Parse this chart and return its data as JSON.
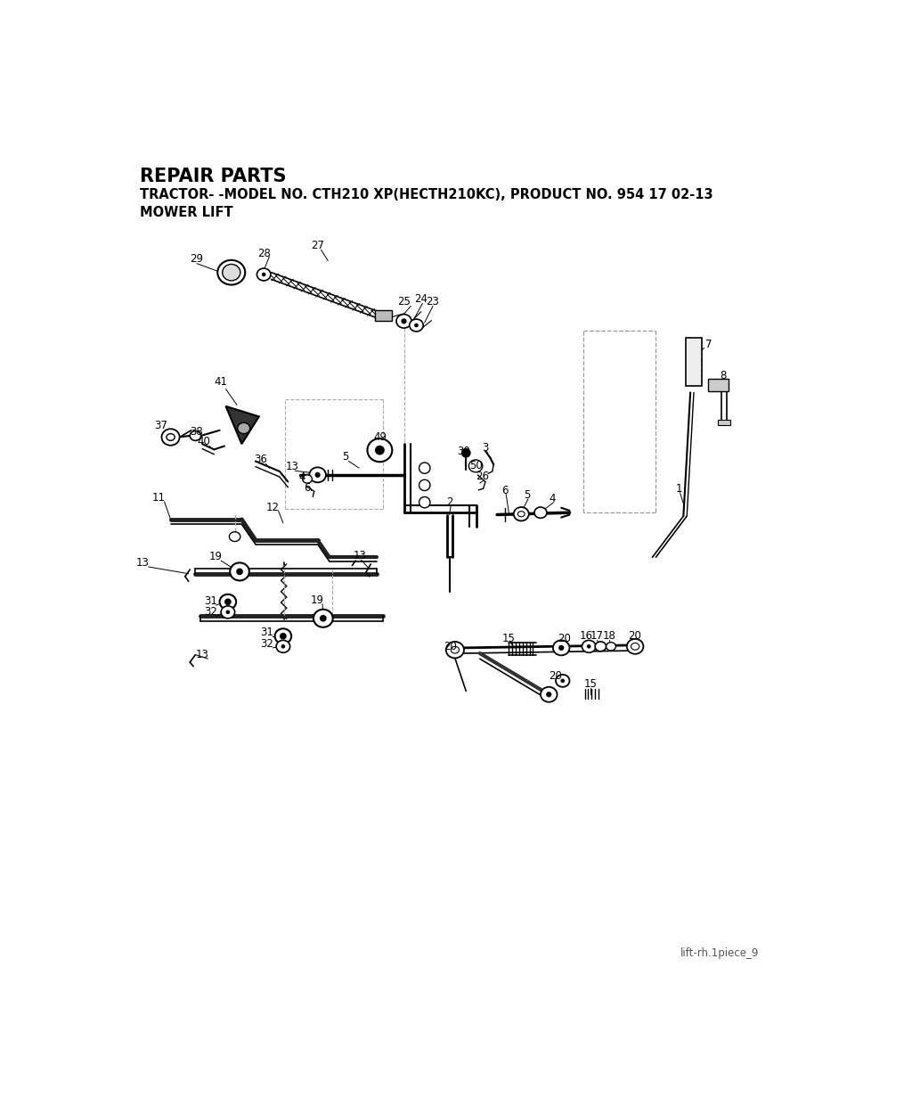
{
  "title": "REPAIR PARTS",
  "subtitle": "TRACTOR- -MODEL NO. CTH210 XP(HECTH210KC), PRODUCT NO. 954 17 02-13",
  "subtitle2": "MOWER LIFT",
  "footer": "lift-rh.1piece_9",
  "bg_color": "#ffffff",
  "title_fontsize": 15,
  "subtitle_fontsize": 10.5,
  "subtitle2_fontsize": 10.5,
  "footer_fontsize": 8.5,
  "labels": [
    [
      "29",
      120,
      185
    ],
    [
      "28",
      218,
      177
    ],
    [
      "27",
      295,
      166
    ],
    [
      "25",
      420,
      248
    ],
    [
      "24",
      445,
      244
    ],
    [
      "23",
      462,
      248
    ],
    [
      "41",
      155,
      365
    ],
    [
      "37",
      68,
      428
    ],
    [
      "38",
      120,
      437
    ],
    [
      "40",
      130,
      452
    ],
    [
      "36",
      213,
      478
    ],
    [
      "13",
      258,
      488
    ],
    [
      "4",
      272,
      503
    ],
    [
      "6",
      280,
      519
    ],
    [
      "5",
      335,
      474
    ],
    [
      "49",
      385,
      445
    ],
    [
      "30",
      506,
      466
    ],
    [
      "3",
      538,
      461
    ],
    [
      "50",
      524,
      486
    ],
    [
      "26",
      534,
      502
    ],
    [
      "6",
      566,
      523
    ],
    [
      "5",
      598,
      530
    ],
    [
      "4",
      635,
      535
    ],
    [
      "2",
      486,
      540
    ],
    [
      "11",
      65,
      533
    ],
    [
      "12",
      230,
      547
    ],
    [
      "13",
      42,
      628
    ],
    [
      "19",
      147,
      619
    ],
    [
      "31",
      140,
      684
    ],
    [
      "32",
      140,
      700
    ],
    [
      "13",
      356,
      618
    ],
    [
      "19",
      295,
      683
    ],
    [
      "31",
      222,
      730
    ],
    [
      "32",
      222,
      746
    ],
    [
      "13",
      128,
      762
    ],
    [
      "7",
      862,
      310
    ],
    [
      "8",
      882,
      356
    ],
    [
      "1",
      818,
      520
    ],
    [
      "20",
      487,
      750
    ],
    [
      "15",
      572,
      738
    ],
    [
      "20",
      652,
      738
    ],
    [
      "16",
      684,
      735
    ],
    [
      "17",
      700,
      735
    ],
    [
      "18",
      718,
      735
    ],
    [
      "20",
      754,
      735
    ],
    [
      "20",
      640,
      793
    ],
    [
      "15",
      690,
      805
    ]
  ]
}
